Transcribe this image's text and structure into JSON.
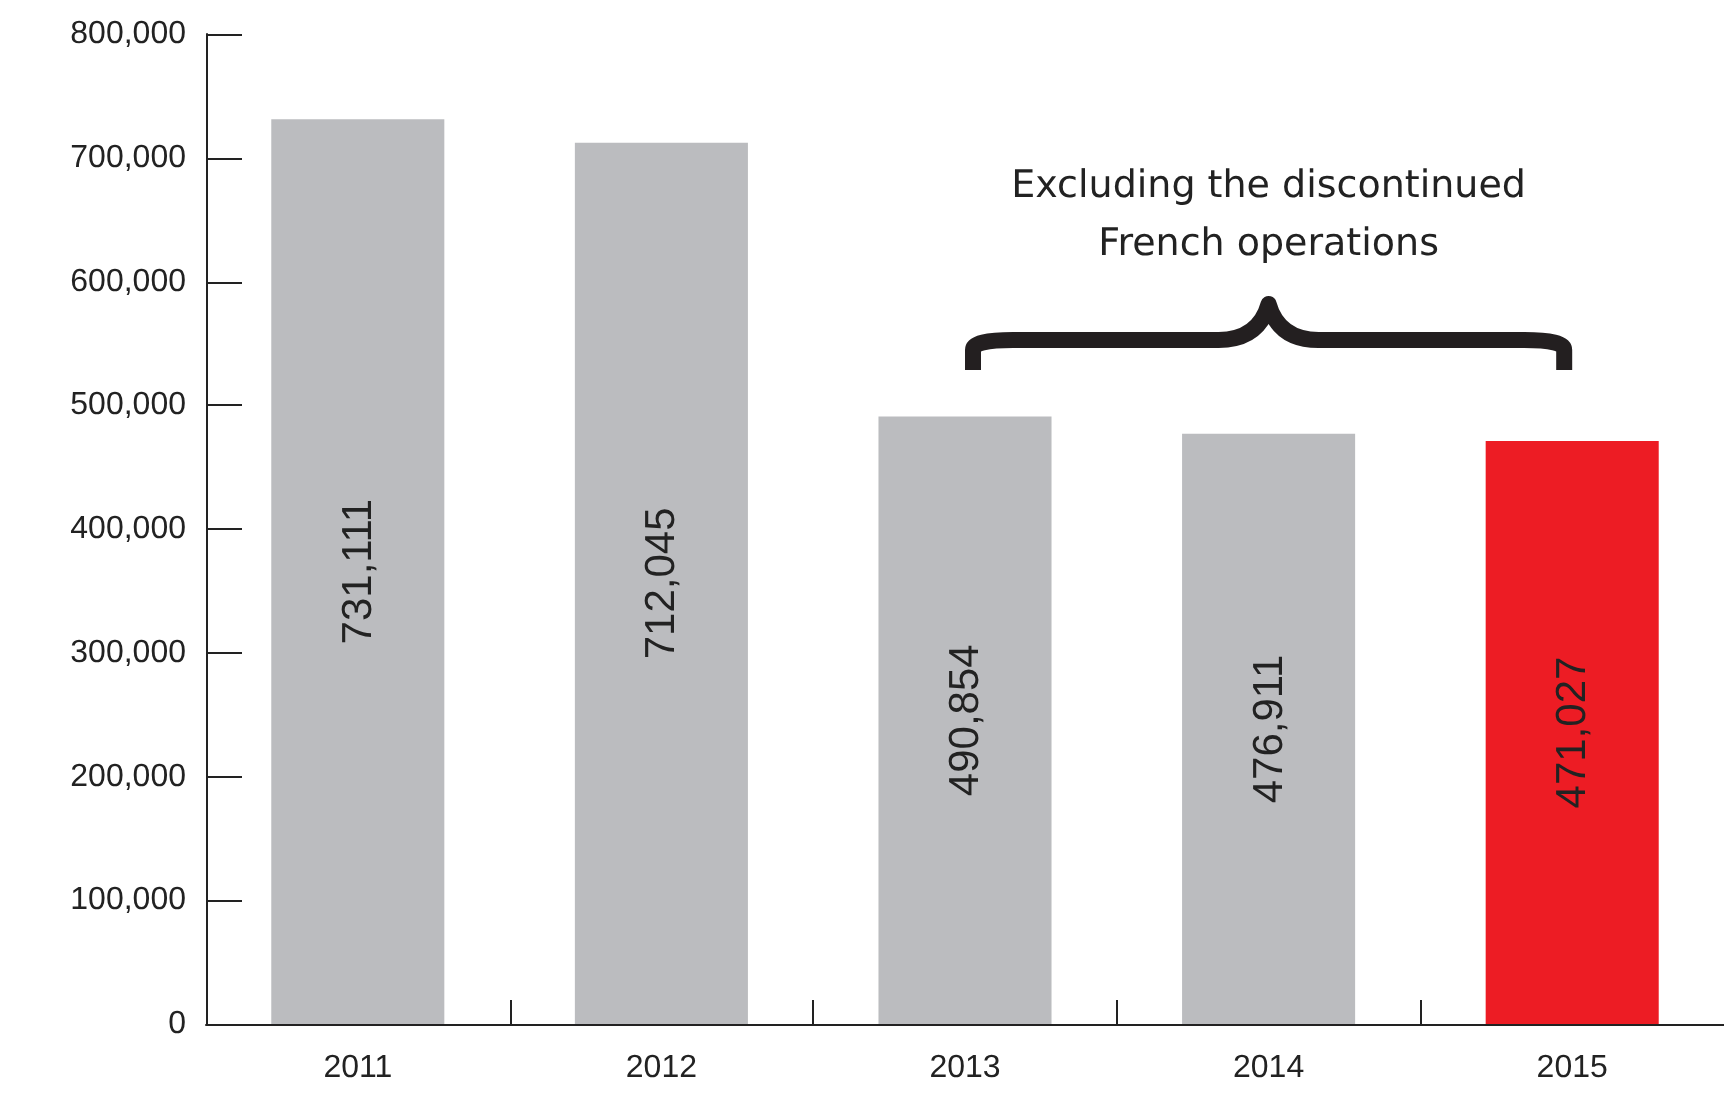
{
  "chart_data": {
    "type": "bar",
    "categories": [
      "2011",
      "2012",
      "2013",
      "2014",
      "2015"
    ],
    "values": [
      731111,
      712045,
      490854,
      476911,
      471027
    ],
    "colors": [
      "#bbbcbf",
      "#bbbcbf",
      "#bbbcbf",
      "#bbbcbf",
      "#ed1c24"
    ],
    "ylim": [
      0,
      800000
    ],
    "yticks": [
      {
        "value": 0,
        "label": "0"
      },
      {
        "value": 100000,
        "label": "100,000"
      },
      {
        "value": 200000,
        "label": "200,000"
      },
      {
        "value": 300000,
        "label": "300,000"
      },
      {
        "value": 400000,
        "label": "400,000"
      },
      {
        "value": 500000,
        "label": "500,000"
      },
      {
        "value": 600000,
        "label": "600,000"
      },
      {
        "value": 700000,
        "label": "700,000"
      },
      {
        "value": 800000,
        "label": "800,000"
      }
    ],
    "value_labels": [
      "731,111",
      "712,045",
      "490,854",
      "476,911",
      "471,027"
    ],
    "annotations": [
      "Excluding the discontinued\nFrench operations"
    ]
  }
}
